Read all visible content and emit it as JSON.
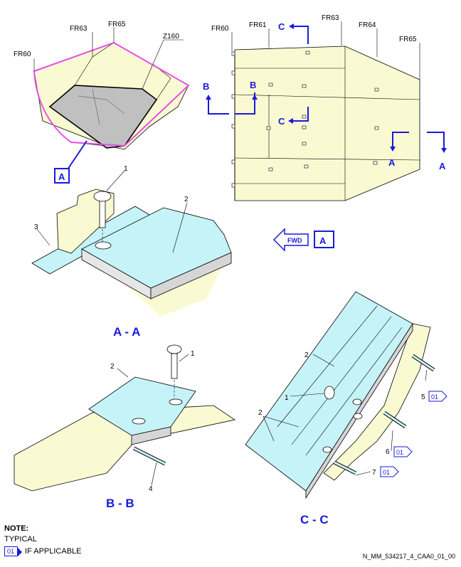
{
  "frames_left": {
    "fr60": "FR60",
    "fr63": "FR63",
    "fr65": "FR65",
    "z160": "Z160"
  },
  "frames_right": {
    "fr60": "FR60",
    "fr61": "FR61",
    "fr63": "FR63",
    "fr64": "FR64",
    "fr65": "FR65"
  },
  "markers": {
    "a": "A",
    "b": "B",
    "c": "C"
  },
  "fwd_label": "FWD",
  "callouts": {
    "n1": "1",
    "n2": "2",
    "n3": "3",
    "n4": "4",
    "n5": "5",
    "n6": "6",
    "n7": "7",
    "flag": "01"
  },
  "sections": {
    "aa": "A - A",
    "bb": "B - B",
    "cc": "C - C"
  },
  "note": {
    "title": "NOTE:",
    "typical": "TYPICAL",
    "flag": "01",
    "if_applicable": "IF APPLICABLE"
  },
  "reference": "N_MM_534217_4_CAA0_01_00",
  "colors": {
    "outline": "#1a1adb",
    "panel_blue": "#c6f3f8",
    "structure_yellow": "#fafad2",
    "area_magenta": "#e64fe6",
    "floor_gray": "#c0c0c0"
  }
}
